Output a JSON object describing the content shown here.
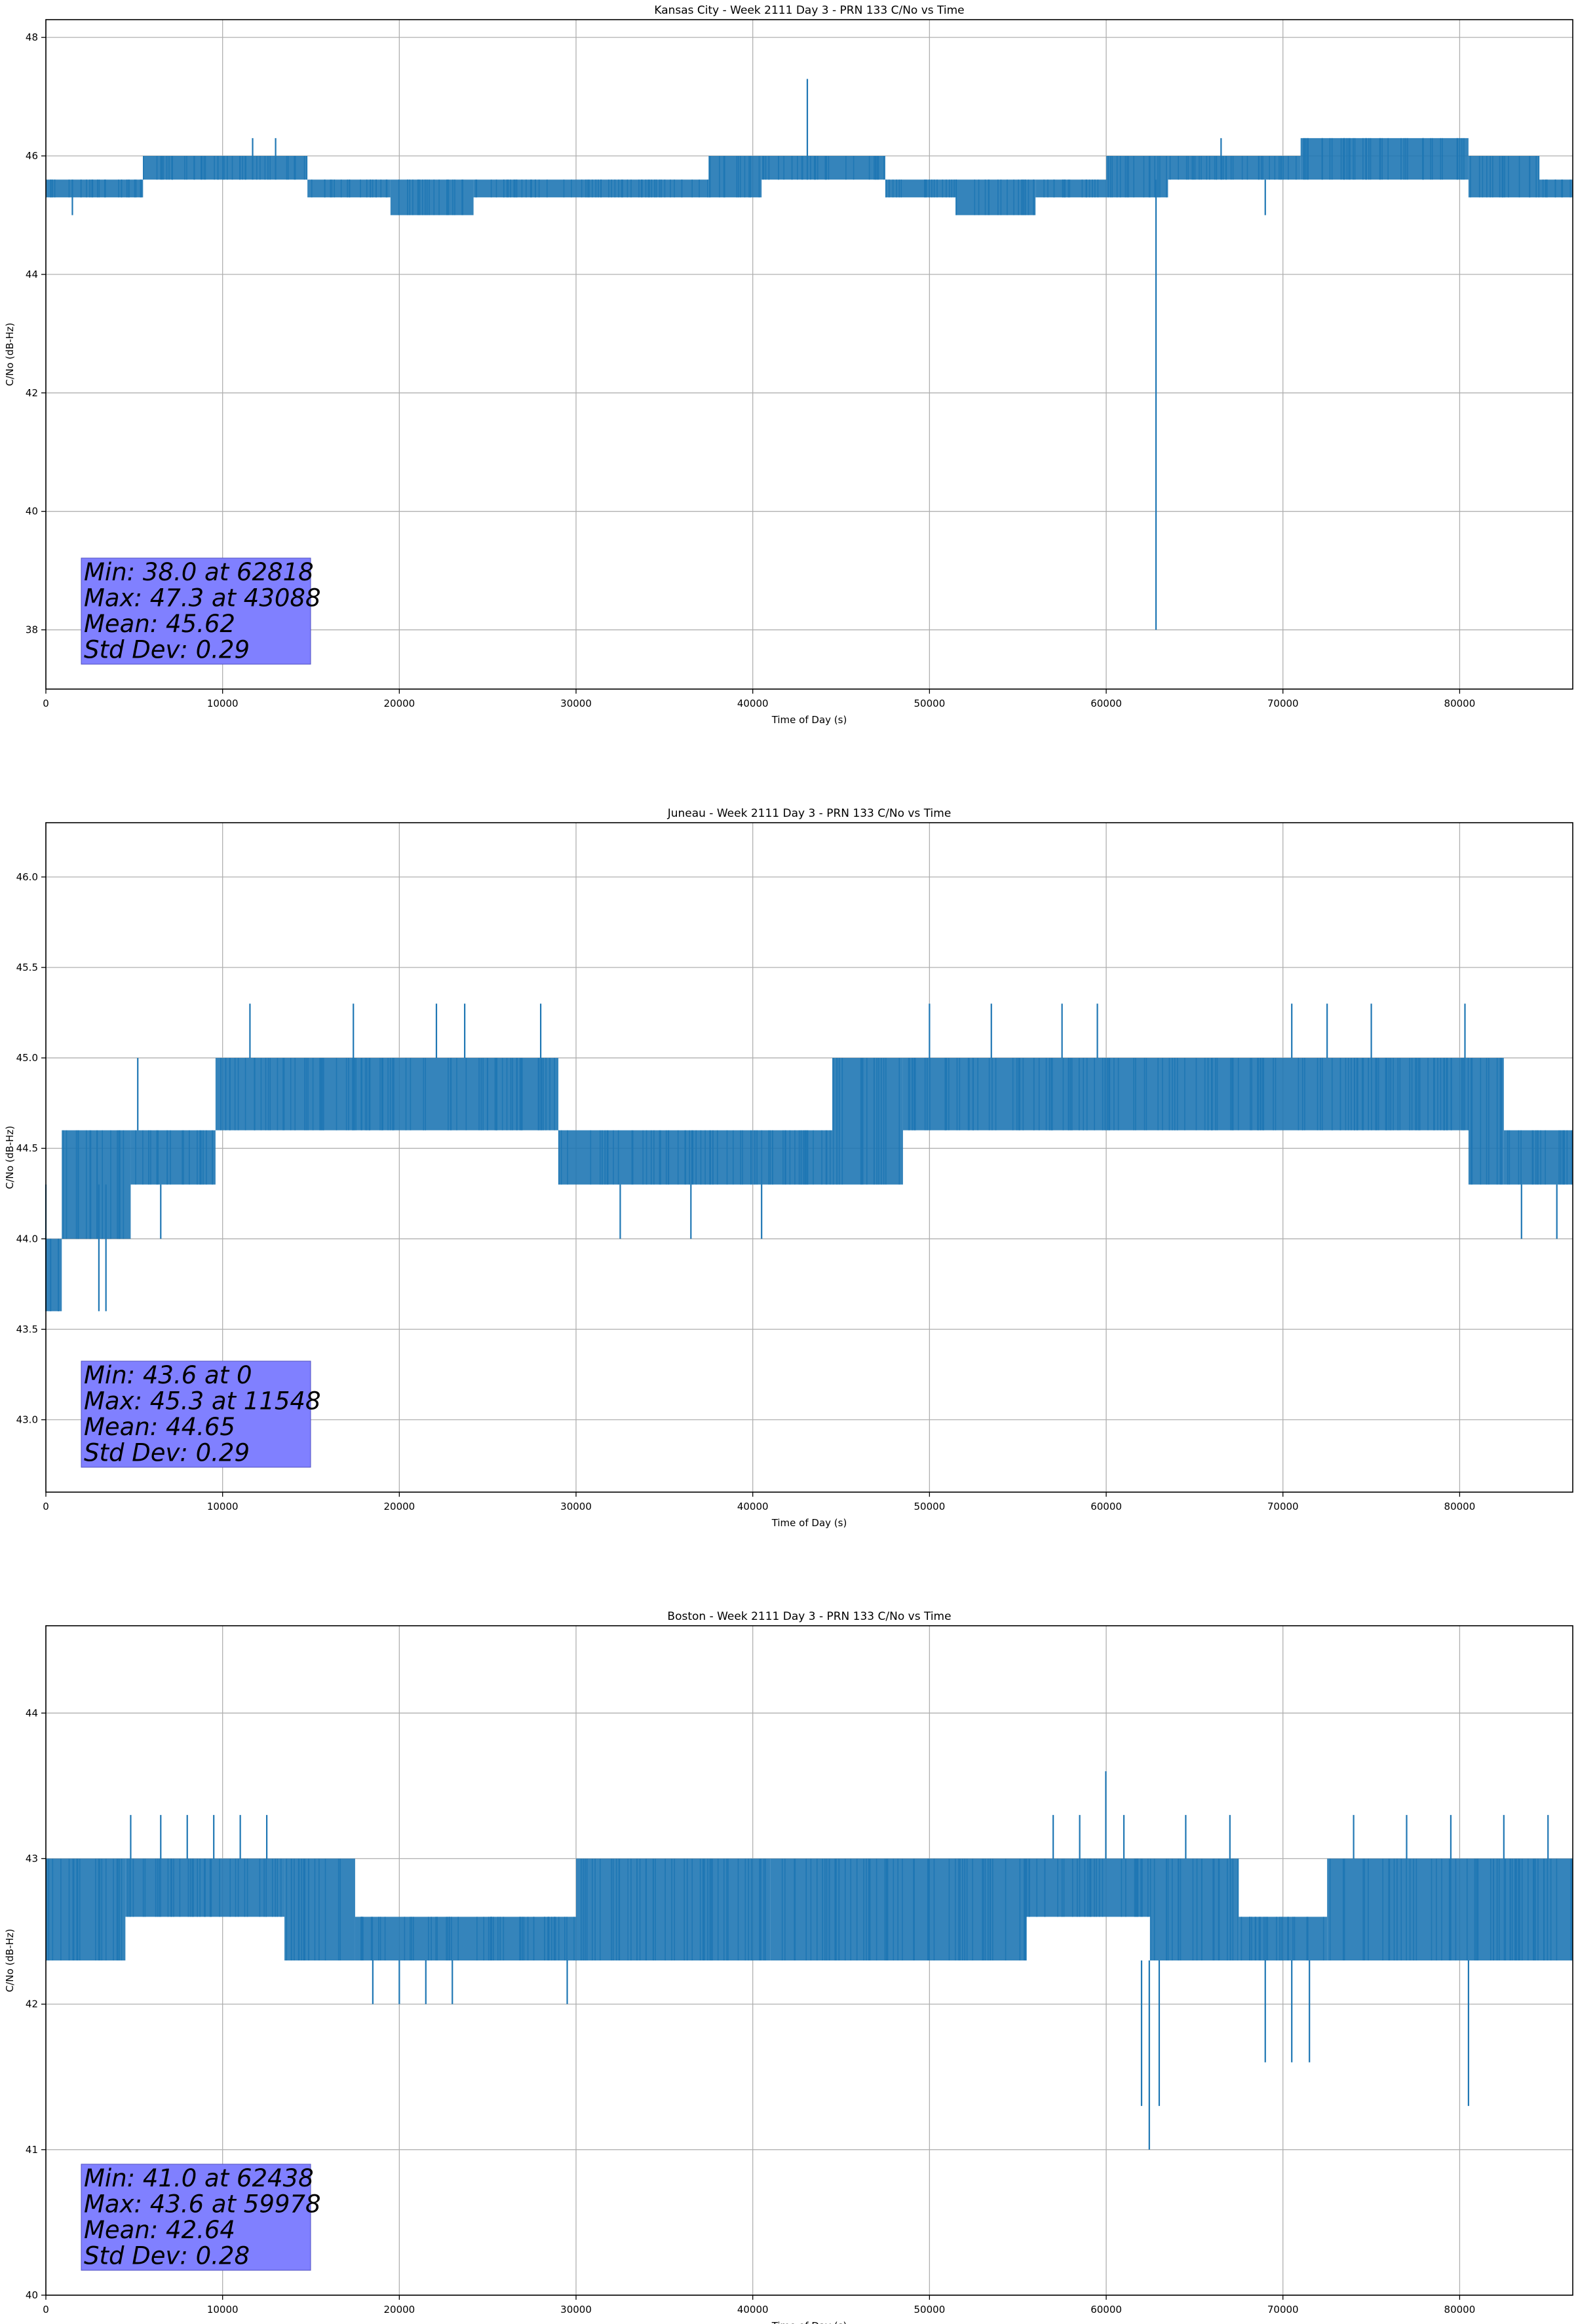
{
  "chart_data": [
    {
      "type": "line",
      "title": "Kansas City - Week 2111 Day 3 - PRN 133 C/No vs Time",
      "xlabel": "Time of Day (s)",
      "ylabel": "C/No (dB-Hz)",
      "xlim": [
        0,
        86400
      ],
      "ylim": [
        37.0,
        48.3
      ],
      "xticks": [
        0,
        10000,
        20000,
        30000,
        40000,
        50000,
        60000,
        70000,
        80000
      ],
      "yticks": [
        38,
        40,
        42,
        44,
        46,
        48
      ],
      "grid": true,
      "color": "#1f77b4",
      "stats_box": {
        "lines": [
          "Min: 38.0 at 62818",
          "Max: 47.3 at 43088",
          "Mean: 45.62",
          "Std Dev: 0.29"
        ],
        "background": "#8080ff"
      },
      "segments": [
        {
          "x": [
            0,
            5500
          ],
          "low": 45.3,
          "high": 45.6
        },
        {
          "x": [
            5500,
            14800
          ],
          "low": 45.6,
          "high": 46.0
        },
        {
          "x": [
            14800,
            19500
          ],
          "low": 45.3,
          "high": 45.6
        },
        {
          "x": [
            19500,
            24200
          ],
          "low": 45.0,
          "high": 45.6
        },
        {
          "x": [
            24200,
            26500
          ],
          "low": 45.3,
          "high": 45.6
        },
        {
          "x": [
            26500,
            31500
          ],
          "low": 45.3,
          "high": 45.6
        },
        {
          "x": [
            31500,
            37500
          ],
          "low": 45.3,
          "high": 45.6
        },
        {
          "x": [
            37500,
            40500
          ],
          "low": 45.3,
          "high": 46.0
        },
        {
          "x": [
            40500,
            47500
          ],
          "low": 45.6,
          "high": 46.0
        },
        {
          "x": [
            47500,
            51500
          ],
          "low": 45.3,
          "high": 45.6
        },
        {
          "x": [
            51500,
            56000
          ],
          "low": 45.0,
          "high": 45.6
        },
        {
          "x": [
            56000,
            60000
          ],
          "low": 45.3,
          "high": 45.6
        },
        {
          "x": [
            60000,
            63500
          ],
          "low": 45.3,
          "high": 46.0
        },
        {
          "x": [
            63500,
            71000
          ],
          "low": 45.6,
          "high": 46.0
        },
        {
          "x": [
            71000,
            80500
          ],
          "low": 45.6,
          "high": 46.3
        },
        {
          "x": [
            80500,
            84500
          ],
          "low": 45.3,
          "high": 46.0
        },
        {
          "x": [
            84500,
            86400
          ],
          "low": 45.3,
          "high": 45.6
        }
      ],
      "spikes": [
        {
          "x": 43088,
          "low": 45.6,
          "high": 47.3
        },
        {
          "x": 62818,
          "low": 38.0,
          "high": 45.6
        },
        {
          "x": 1500,
          "low": 45.0,
          "high": 45.6
        },
        {
          "x": 66500,
          "low": 45.6,
          "high": 46.3
        },
        {
          "x": 11700,
          "low": 45.6,
          "high": 46.3
        },
        {
          "x": 13000,
          "low": 45.6,
          "high": 46.3
        },
        {
          "x": 69000,
          "low": 45.0,
          "high": 45.6
        }
      ]
    },
    {
      "type": "line",
      "title": "Juneau - Week 2111 Day 3 - PRN 133 C/No vs Time",
      "xlabel": "Time of Day (s)",
      "ylabel": "C/No (dB-Hz)",
      "xlim": [
        0,
        86400
      ],
      "ylim": [
        42.6,
        46.3
      ],
      "xticks": [
        0,
        10000,
        20000,
        30000,
        40000,
        50000,
        60000,
        70000,
        80000
      ],
      "yticks": [
        43.0,
        43.5,
        44.0,
        44.5,
        45.0,
        45.5,
        46.0
      ],
      "tick_format": "0.0",
      "grid": true,
      "color": "#1f77b4",
      "stats_box": {
        "lines": [
          "Min: 43.6 at 0",
          "Max: 45.3 at 11548",
          "Mean: 44.65",
          "Std Dev: 0.29"
        ],
        "background": "#8080ff"
      },
      "segments": [
        {
          "x": [
            0,
            900
          ],
          "low": 43.6,
          "high": 44.0
        },
        {
          "x": [
            900,
            4800
          ],
          "low": 44.0,
          "high": 44.6
        },
        {
          "x": [
            4800,
            9600
          ],
          "low": 44.3,
          "high": 44.6
        },
        {
          "x": [
            9600,
            29000
          ],
          "low": 44.6,
          "high": 45.0
        },
        {
          "x": [
            29000,
            44500
          ],
          "low": 44.3,
          "high": 44.6
        },
        {
          "x": [
            44500,
            48500
          ],
          "low": 44.3,
          "high": 45.0
        },
        {
          "x": [
            48500,
            80500
          ],
          "low": 44.6,
          "high": 45.0
        },
        {
          "x": [
            80500,
            82500
          ],
          "low": 44.3,
          "high": 45.0
        },
        {
          "x": [
            82500,
            86400
          ],
          "low": 44.3,
          "high": 44.6
        }
      ],
      "spikes": [
        {
          "x": 11548,
          "low": 45.0,
          "high": 45.3
        },
        {
          "x": 0,
          "low": 43.6,
          "high": 44.3
        },
        {
          "x": 3000,
          "low": 43.6,
          "high": 44.3
        },
        {
          "x": 3400,
          "low": 43.6,
          "high": 44.3
        },
        {
          "x": 5200,
          "low": 44.6,
          "high": 45.0
        },
        {
          "x": 6500,
          "low": 44.0,
          "high": 44.3
        },
        {
          "x": 17400,
          "low": 45.0,
          "high": 45.3
        },
        {
          "x": 22100,
          "low": 45.0,
          "high": 45.3
        },
        {
          "x": 23700,
          "low": 45.0,
          "high": 45.3
        },
        {
          "x": 28000,
          "low": 45.0,
          "high": 45.3
        },
        {
          "x": 32500,
          "low": 44.0,
          "high": 44.3
        },
        {
          "x": 36500,
          "low": 44.0,
          "high": 44.3
        },
        {
          "x": 40500,
          "low": 44.0,
          "high": 44.3
        },
        {
          "x": 50000,
          "low": 45.0,
          "high": 45.3
        },
        {
          "x": 53500,
          "low": 45.0,
          "high": 45.3
        },
        {
          "x": 57500,
          "low": 45.0,
          "high": 45.3
        },
        {
          "x": 59500,
          "low": 45.0,
          "high": 45.3
        },
        {
          "x": 70500,
          "low": 45.0,
          "high": 45.3
        },
        {
          "x": 72500,
          "low": 45.0,
          "high": 45.3
        },
        {
          "x": 75000,
          "low": 45.0,
          "high": 45.3
        },
        {
          "x": 80300,
          "low": 45.0,
          "high": 45.3
        },
        {
          "x": 83500,
          "low": 44.0,
          "high": 44.3
        },
        {
          "x": 85500,
          "low": 44.0,
          "high": 44.3
        }
      ]
    },
    {
      "type": "line",
      "title": "Boston - Week 2111 Day 3 - PRN 133 C/No vs Time",
      "xlabel": "Time of Day (s)",
      "ylabel": "C/No (dB-Hz)",
      "xlim": [
        0,
        86400
      ],
      "ylim": [
        40.0,
        44.6
      ],
      "xticks": [
        0,
        10000,
        20000,
        30000,
        40000,
        50000,
        60000,
        70000,
        80000
      ],
      "yticks": [
        40,
        41,
        42,
        43,
        44
      ],
      "grid": true,
      "color": "#1f77b4",
      "stats_box": {
        "lines": [
          "Min: 41.0 at 62438",
          "Max: 43.6 at 59978",
          "Mean: 42.64",
          "Std Dev: 0.28"
        ],
        "background": "#8080ff"
      },
      "segments": [
        {
          "x": [
            0,
            4500
          ],
          "low": 42.3,
          "high": 43.0
        },
        {
          "x": [
            4500,
            13500
          ],
          "low": 42.6,
          "high": 43.0
        },
        {
          "x": [
            13500,
            17500
          ],
          "low": 42.3,
          "high": 43.0
        },
        {
          "x": [
            17500,
            30000
          ],
          "low": 42.3,
          "high": 42.6
        },
        {
          "x": [
            30000,
            33000
          ],
          "low": 42.3,
          "high": 43.0
        },
        {
          "x": [
            33000,
            41000
          ],
          "low": 42.3,
          "high": 43.0
        },
        {
          "x": [
            41000,
            46000
          ],
          "low": 42.3,
          "high": 43.0
        },
        {
          "x": [
            46000,
            55500
          ],
          "low": 42.3,
          "high": 43.0
        },
        {
          "x": [
            55500,
            62500
          ],
          "low": 42.6,
          "high": 43.0
        },
        {
          "x": [
            62500,
            67500
          ],
          "low": 42.3,
          "high": 43.0
        },
        {
          "x": [
            67500,
            72500
          ],
          "low": 42.3,
          "high": 42.6
        },
        {
          "x": [
            72500,
            86400
          ],
          "low": 42.3,
          "high": 43.0
        }
      ],
      "spikes": [
        {
          "x": 59978,
          "low": 43.0,
          "high": 43.6
        },
        {
          "x": 62438,
          "low": 41.0,
          "high": 42.3
        },
        {
          "x": 62000,
          "low": 41.3,
          "high": 42.3
        },
        {
          "x": 63000,
          "low": 41.3,
          "high": 42.3
        },
        {
          "x": 4800,
          "low": 43.0,
          "high": 43.3
        },
        {
          "x": 6500,
          "low": 43.0,
          "high": 43.3
        },
        {
          "x": 8000,
          "low": 43.0,
          "high": 43.3
        },
        {
          "x": 9500,
          "low": 43.0,
          "high": 43.3
        },
        {
          "x": 11000,
          "low": 43.0,
          "high": 43.3
        },
        {
          "x": 12500,
          "low": 43.0,
          "high": 43.3
        },
        {
          "x": 18500,
          "low": 42.0,
          "high": 42.3
        },
        {
          "x": 20000,
          "low": 42.0,
          "high": 42.3
        },
        {
          "x": 21500,
          "low": 42.0,
          "high": 42.3
        },
        {
          "x": 23000,
          "low": 42.0,
          "high": 42.3
        },
        {
          "x": 29500,
          "low": 42.0,
          "high": 42.3
        },
        {
          "x": 57000,
          "low": 43.0,
          "high": 43.3
        },
        {
          "x": 58500,
          "low": 43.0,
          "high": 43.3
        },
        {
          "x": 61000,
          "low": 43.0,
          "high": 43.3
        },
        {
          "x": 64500,
          "low": 43.0,
          "high": 43.3
        },
        {
          "x": 67000,
          "low": 43.0,
          "high": 43.3
        },
        {
          "x": 69000,
          "low": 41.6,
          "high": 42.3
        },
        {
          "x": 70500,
          "low": 41.6,
          "high": 42.3
        },
        {
          "x": 71500,
          "low": 41.6,
          "high": 42.3
        },
        {
          "x": 80500,
          "low": 41.3,
          "high": 42.3
        },
        {
          "x": 74000,
          "low": 43.0,
          "high": 43.3
        },
        {
          "x": 77000,
          "low": 43.0,
          "high": 43.3
        },
        {
          "x": 79500,
          "low": 43.0,
          "high": 43.3
        },
        {
          "x": 82500,
          "low": 43.0,
          "high": 43.3
        },
        {
          "x": 85000,
          "low": 43.0,
          "high": 43.3
        }
      ]
    }
  ]
}
